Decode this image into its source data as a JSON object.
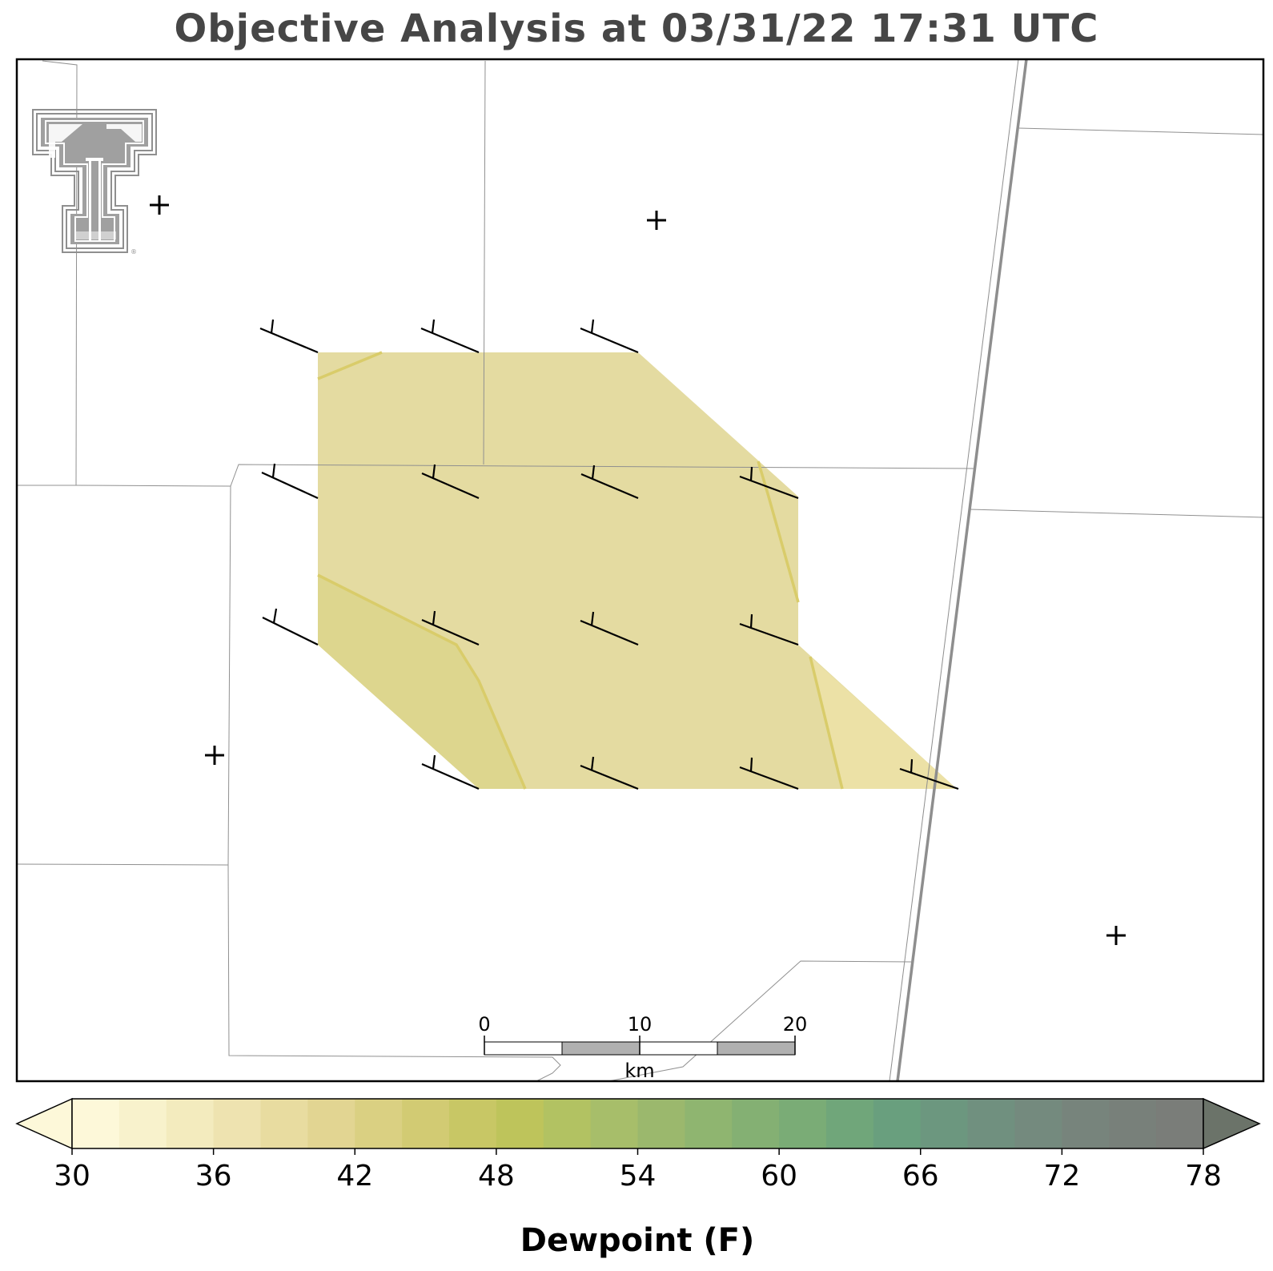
{
  "title": "Objective Analysis at 03/31/22 17:31 UTC",
  "colorbar": {
    "title": "Dewpoint (F)",
    "ticks": [
      "30",
      "36",
      "42",
      "48",
      "54",
      "60",
      "66",
      "72",
      "78"
    ],
    "colors": [
      "#fdf8d9",
      "#f8f2cc",
      "#f3ebbe",
      "#eee3b0",
      "#e8dca0",
      "#e2d592",
      "#dad082",
      "#d2cb73",
      "#c8c765",
      "#bec45b",
      "#b2c262",
      "#a7be6a",
      "#9bb86d",
      "#8fb570",
      "#84b073",
      "#7aac76",
      "#70a67a",
      "#699f7e",
      "#6c977f",
      "#70907f",
      "#748a7e",
      "#77847c",
      "#78807a",
      "#7a7d79"
    ],
    "under_color": "#fdf8d9",
    "over_color": "#6b7369"
  },
  "scalebar": {
    "labels": [
      "0",
      "10",
      "20"
    ],
    "unit": "km"
  },
  "logo_icon": "texas-tech-double-t-logo",
  "station_marker_icon": "plus-icon",
  "wind_barb_icon": "wind-barb-icon",
  "analysis_fill_colors": [
    "#e3d99c",
    "#ddd68e",
    "#ece1a6"
  ],
  "contour_color": "#d9cc6a"
}
